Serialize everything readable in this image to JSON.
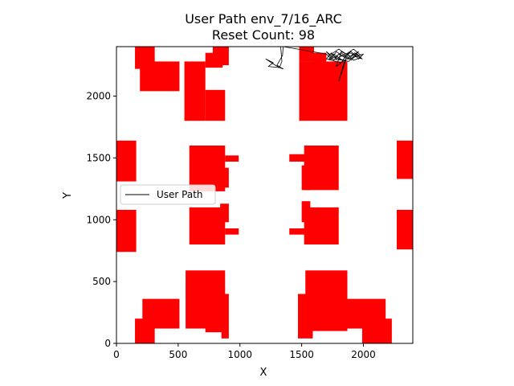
{
  "chart_data": {
    "type": "line",
    "title": "User Path env_7/16_ARC",
    "subtitle": "Reset Count: 98",
    "xlabel": "X",
    "ylabel": "Y",
    "xlim": [
      0,
      2400
    ],
    "ylim": [
      0,
      2400
    ],
    "xticks": [
      0,
      500,
      1000,
      1500,
      2000
    ],
    "yticks": [
      0,
      500,
      1000,
      1500,
      2000
    ],
    "grid": false,
    "legend_position": "center-left",
    "series": [
      {
        "name": "User Path",
        "color": "#000000",
        "points": [
          [
            1330,
            2400
          ],
          [
            1340,
            2280
          ],
          [
            1320,
            2230
          ],
          [
            1270,
            2260
          ],
          [
            1210,
            2300
          ],
          [
            1270,
            2270
          ],
          [
            1230,
            2240
          ],
          [
            1320,
            2230
          ],
          [
            1350,
            2220
          ],
          [
            1300,
            2250
          ],
          [
            1345,
            2330
          ],
          [
            1350,
            2400
          ],
          [
            1700,
            2340
          ],
          [
            1740,
            2300
          ],
          [
            1780,
            2360
          ],
          [
            1840,
            2320
          ],
          [
            1900,
            2360
          ],
          [
            1960,
            2300
          ],
          [
            2000,
            2340
          ],
          [
            1880,
            2300
          ],
          [
            1820,
            2350
          ],
          [
            1760,
            2310
          ],
          [
            1700,
            2360
          ],
          [
            1760,
            2290
          ],
          [
            1800,
            2340
          ],
          [
            1870,
            2300
          ],
          [
            1930,
            2350
          ],
          [
            1980,
            2310
          ],
          [
            1920,
            2290
          ],
          [
            1860,
            2345
          ],
          [
            1780,
            2300
          ],
          [
            1740,
            2350
          ],
          [
            1700,
            2300
          ],
          [
            1820,
            2270
          ],
          [
            1860,
            2330
          ],
          [
            1900,
            2290
          ],
          [
            1950,
            2340
          ],
          [
            1990,
            2300
          ],
          [
            1890,
            2350
          ],
          [
            1830,
            2290
          ],
          [
            1760,
            2340
          ],
          [
            1720,
            2300
          ],
          [
            1850,
            2290
          ],
          [
            1800,
            2120
          ],
          [
            1860,
            2300
          ],
          [
            1780,
            2240
          ],
          [
            1820,
            2360
          ],
          [
            1900,
            2320
          ],
          [
            1960,
            2360
          ],
          [
            1880,
            2280
          ],
          [
            1800,
            2300
          ],
          [
            1740,
            2340
          ],
          [
            1800,
            2380
          ],
          [
            1860,
            2340
          ],
          [
            1920,
            2380
          ],
          [
            1980,
            2330
          ]
        ]
      }
    ],
    "obstacles": {
      "color": "#ff0000",
      "rects": [
        [
          150,
          2220,
          310,
          2400
        ],
        [
          190,
          2040,
          510,
          2280
        ],
        [
          550,
          1800,
          720,
          2280
        ],
        [
          720,
          2230,
          860,
          2350
        ],
        [
          720,
          1800,
          880,
          2050
        ],
        [
          780,
          2250,
          910,
          2400
        ],
        [
          0,
          1310,
          160,
          1640
        ],
        [
          0,
          740,
          160,
          1080
        ],
        [
          590,
          1230,
          880,
          1600
        ],
        [
          880,
          1470,
          990,
          1520
        ],
        [
          840,
          1260,
          910,
          1420
        ],
        [
          590,
          800,
          880,
          1100
        ],
        [
          880,
          880,
          990,
          930
        ],
        [
          840,
          980,
          910,
          1130
        ],
        [
          1480,
          2280,
          1600,
          2400
        ],
        [
          1480,
          1800,
          1870,
          2280
        ],
        [
          1580,
          2200,
          1700,
          2350
        ],
        [
          1500,
          1240,
          1570,
          1440
        ],
        [
          1400,
          1470,
          1530,
          1530
        ],
        [
          1520,
          1240,
          1800,
          1600
        ],
        [
          1500,
          980,
          1570,
          1150
        ],
        [
          1400,
          880,
          1530,
          930
        ],
        [
          1520,
          800,
          1800,
          1100
        ],
        [
          2270,
          1330,
          2430,
          1640
        ],
        [
          2270,
          760,
          2430,
          1080
        ],
        [
          560,
          120,
          880,
          590
        ],
        [
          720,
          90,
          880,
          400
        ],
        [
          850,
          40,
          910,
          400
        ],
        [
          1470,
          40,
          1590,
          400
        ],
        [
          1530,
          100,
          1870,
          590
        ],
        [
          1590,
          130,
          1730,
          420
        ],
        [
          210,
          120,
          510,
          360
        ],
        [
          150,
          0,
          310,
          200
        ],
        [
          1860,
          120,
          2180,
          360
        ],
        [
          1990,
          0,
          2230,
          200
        ]
      ]
    }
  }
}
